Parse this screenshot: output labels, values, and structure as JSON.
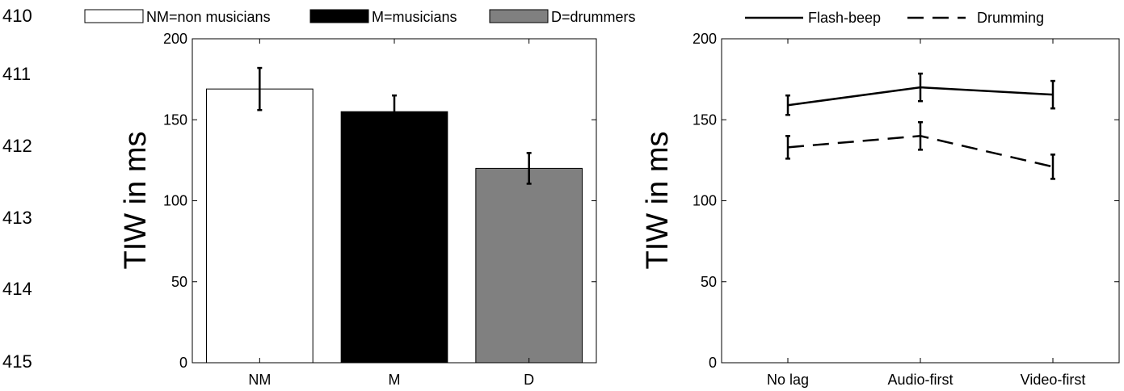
{
  "margin_line_numbers": [
    "410",
    "411",
    "412",
    "413",
    "414",
    "415"
  ],
  "chart_data": [
    {
      "type": "bar",
      "categories": [
        "NM",
        "M",
        "D"
      ],
      "values": [
        169,
        155,
        120
      ],
      "errors": [
        13,
        10,
        9.5
      ],
      "colors": [
        "#ffffff",
        "#000000",
        "#808080"
      ],
      "legend": [
        "NM=non musicians",
        "M=musicians",
        "D=drummers"
      ],
      "ylabel": "TIW in ms",
      "ylim": [
        0,
        200
      ],
      "yticks": [
        0,
        50,
        100,
        150,
        200
      ]
    },
    {
      "type": "line",
      "categories": [
        "No lag",
        "Audio-first",
        "Video-first"
      ],
      "series": [
        {
          "name": "Flash-beep",
          "values": [
            159,
            170,
            165.5
          ],
          "errors": [
            6,
            8.5,
            8.5
          ],
          "dash": "solid"
        },
        {
          "name": "Drumming",
          "values": [
            133,
            140,
            121
          ],
          "errors": [
            7,
            8.5,
            7.5
          ],
          "dash": "dashed"
        }
      ],
      "ylabel": "TIW in ms",
      "ylim": [
        0,
        200
      ],
      "yticks": [
        0,
        50,
        100,
        150,
        200
      ]
    }
  ]
}
